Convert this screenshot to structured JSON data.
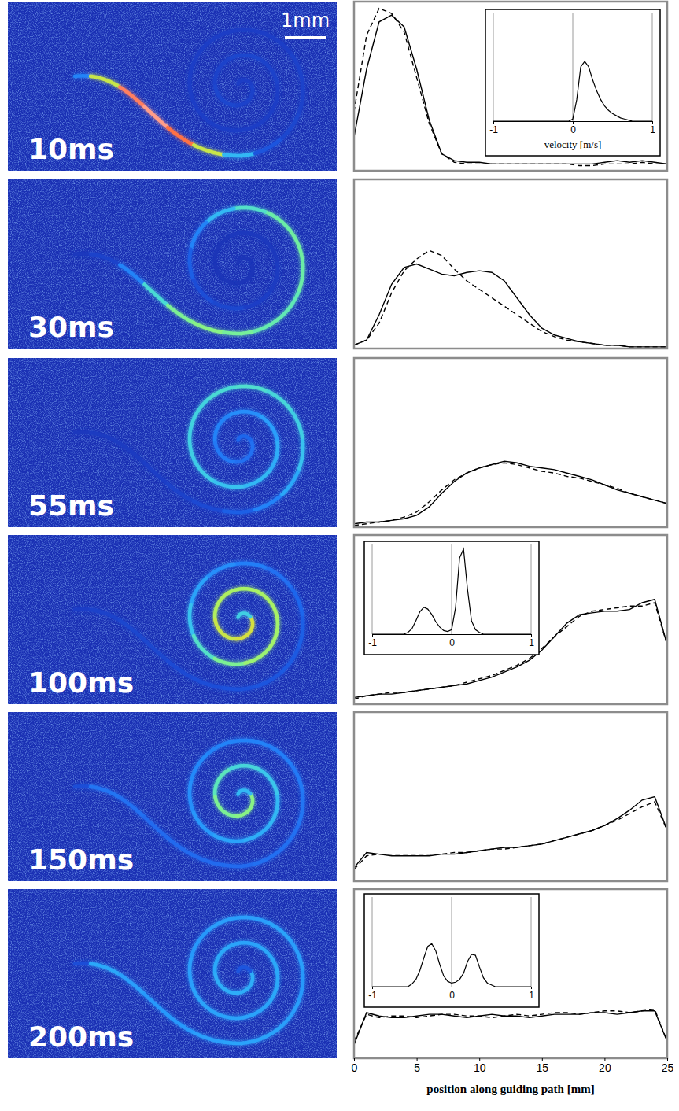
{
  "images": {
    "scale_bar": "1mm",
    "labels": [
      "10ms",
      "30ms",
      "55ms",
      "100ms",
      "150ms",
      "200ms"
    ]
  },
  "chart_data": [
    {
      "type": "line",
      "x": [
        0,
        1,
        2,
        3,
        4,
        5,
        6,
        7,
        8,
        9,
        10,
        11,
        12,
        13,
        14,
        15,
        16,
        17,
        18,
        19,
        20,
        21,
        22,
        23,
        24,
        25
      ],
      "xlim": [
        0,
        25
      ],
      "ylim": [
        0,
        1
      ],
      "tick_labels": false,
      "series": [
        {
          "line_style": "solid",
          "values": [
            0.2,
            0.6,
            0.88,
            0.92,
            0.85,
            0.6,
            0.3,
            0.1,
            0.06,
            0.05,
            0.05,
            0.04,
            0.04,
            0.04,
            0.04,
            0.04,
            0.04,
            0.04,
            0.04,
            0.04,
            0.05,
            0.06,
            0.05,
            0.06,
            0.05,
            0.04
          ]
        },
        {
          "line_style": "dashed",
          "values": [
            0.35,
            0.8,
            0.96,
            0.93,
            0.82,
            0.55,
            0.28,
            0.1,
            0.05,
            0.04,
            0.04,
            0.04,
            0.04,
            0.04,
            0.04,
            0.04,
            0.04,
            0.04,
            0.03,
            0.03,
            0.04,
            0.04,
            0.04,
            0.05,
            0.04,
            0.04
          ]
        }
      ]
    },
    {
      "type": "line",
      "x": [
        0,
        1,
        2,
        3,
        4,
        5,
        6,
        7,
        8,
        9,
        10,
        11,
        12,
        13,
        14,
        15,
        16,
        17,
        18,
        19,
        20,
        21,
        22,
        23,
        24,
        25
      ],
      "xlim": [
        0,
        25
      ],
      "ylim": [
        0,
        1
      ],
      "tick_labels": false,
      "series": [
        {
          "line_style": "solid",
          "values": [
            0.02,
            0.05,
            0.2,
            0.38,
            0.48,
            0.5,
            0.47,
            0.44,
            0.43,
            0.45,
            0.46,
            0.45,
            0.4,
            0.3,
            0.2,
            0.12,
            0.08,
            0.06,
            0.04,
            0.03,
            0.02,
            0.02,
            0.01,
            0.01,
            0.01,
            0.01
          ]
        },
        {
          "line_style": "dashed",
          "values": [
            0.02,
            0.05,
            0.15,
            0.33,
            0.46,
            0.53,
            0.58,
            0.55,
            0.47,
            0.4,
            0.35,
            0.3,
            0.25,
            0.2,
            0.15,
            0.1,
            0.07,
            0.05,
            0.04,
            0.03,
            0.02,
            0.02,
            0.01,
            0.01,
            0.01,
            0.01
          ]
        }
      ]
    },
    {
      "type": "line",
      "x": [
        0,
        1,
        2,
        3,
        4,
        5,
        6,
        7,
        8,
        9,
        10,
        11,
        12,
        13,
        14,
        15,
        16,
        17,
        18,
        19,
        20,
        21,
        22,
        23,
        24,
        25
      ],
      "xlim": [
        0,
        25
      ],
      "ylim": [
        0,
        1
      ],
      "tick_labels": false,
      "series": [
        {
          "line_style": "solid",
          "values": [
            0.02,
            0.03,
            0.03,
            0.04,
            0.05,
            0.07,
            0.12,
            0.2,
            0.27,
            0.32,
            0.35,
            0.37,
            0.39,
            0.38,
            0.36,
            0.35,
            0.34,
            0.32,
            0.3,
            0.28,
            0.25,
            0.22,
            0.2,
            0.18,
            0.16,
            0.14
          ]
        },
        {
          "line_style": "dashed",
          "values": [
            0.01,
            0.02,
            0.03,
            0.04,
            0.06,
            0.09,
            0.15,
            0.22,
            0.28,
            0.32,
            0.35,
            0.37,
            0.38,
            0.37,
            0.35,
            0.33,
            0.32,
            0.3,
            0.29,
            0.27,
            0.25,
            0.23,
            0.2,
            0.18,
            0.16,
            0.14
          ]
        }
      ]
    },
    {
      "type": "line",
      "x": [
        0,
        1,
        2,
        3,
        4,
        5,
        6,
        7,
        8,
        9,
        10,
        11,
        12,
        13,
        14,
        15,
        16,
        17,
        18,
        19,
        20,
        21,
        22,
        23,
        24,
        25
      ],
      "xlim": [
        0,
        25
      ],
      "ylim": [
        0,
        1
      ],
      "tick_labels": false,
      "series": [
        {
          "line_style": "solid",
          "values": [
            0.04,
            0.05,
            0.06,
            0.06,
            0.07,
            0.08,
            0.09,
            0.1,
            0.11,
            0.12,
            0.14,
            0.16,
            0.19,
            0.22,
            0.26,
            0.32,
            0.4,
            0.48,
            0.53,
            0.54,
            0.55,
            0.55,
            0.56,
            0.6,
            0.62,
            0.35
          ]
        },
        {
          "line_style": "dashed",
          "values": [
            0.03,
            0.05,
            0.06,
            0.07,
            0.07,
            0.08,
            0.09,
            0.1,
            0.11,
            0.13,
            0.15,
            0.17,
            0.2,
            0.23,
            0.27,
            0.33,
            0.4,
            0.46,
            0.52,
            0.55,
            0.56,
            0.57,
            0.58,
            0.58,
            0.6,
            0.35
          ]
        }
      ]
    },
    {
      "type": "line",
      "x": [
        0,
        1,
        2,
        3,
        4,
        5,
        6,
        7,
        8,
        9,
        10,
        11,
        12,
        13,
        14,
        15,
        16,
        17,
        18,
        19,
        20,
        21,
        22,
        23,
        24,
        25
      ],
      "xlim": [
        0,
        25
      ],
      "ylim": [
        0,
        1
      ],
      "tick_labels": false,
      "series": [
        {
          "line_style": "solid",
          "values": [
            0.08,
            0.17,
            0.16,
            0.15,
            0.15,
            0.15,
            0.15,
            0.16,
            0.16,
            0.17,
            0.18,
            0.19,
            0.2,
            0.2,
            0.21,
            0.22,
            0.24,
            0.26,
            0.28,
            0.3,
            0.33,
            0.37,
            0.42,
            0.48,
            0.5,
            0.3
          ]
        },
        {
          "line_style": "dashed",
          "values": [
            0.07,
            0.15,
            0.16,
            0.16,
            0.16,
            0.16,
            0.16,
            0.16,
            0.17,
            0.17,
            0.18,
            0.19,
            0.19,
            0.2,
            0.21,
            0.22,
            0.24,
            0.26,
            0.28,
            0.3,
            0.33,
            0.36,
            0.4,
            0.44,
            0.47,
            0.3
          ]
        }
      ]
    },
    {
      "type": "line",
      "x": [
        0,
        1,
        2,
        3,
        4,
        5,
        6,
        7,
        8,
        9,
        10,
        11,
        12,
        13,
        14,
        15,
        16,
        17,
        18,
        19,
        20,
        21,
        22,
        23,
        24,
        25
      ],
      "xlim": [
        0,
        25
      ],
      "ylim": [
        0,
        1
      ],
      "xticks": [
        0,
        5,
        10,
        15,
        20,
        25
      ],
      "tick_labels": "x",
      "x_label": "position along guiding path [mm]",
      "series": [
        {
          "line_style": "solid",
          "values": [
            0.08,
            0.27,
            0.25,
            0.24,
            0.24,
            0.25,
            0.26,
            0.26,
            0.25,
            0.24,
            0.25,
            0.26,
            0.25,
            0.25,
            0.24,
            0.25,
            0.26,
            0.26,
            0.26,
            0.27,
            0.27,
            0.26,
            0.27,
            0.28,
            0.28,
            0.1
          ]
        },
        {
          "line_style": "dashed",
          "values": [
            0.1,
            0.26,
            0.24,
            0.25,
            0.25,
            0.24,
            0.25,
            0.26,
            0.26,
            0.25,
            0.25,
            0.24,
            0.25,
            0.26,
            0.25,
            0.26,
            0.27,
            0.27,
            0.26,
            0.27,
            0.28,
            0.28,
            0.27,
            0.28,
            0.29,
            0.1
          ]
        }
      ]
    },
    {
      "type": "line",
      "x": [
        -1,
        -0.95,
        -0.9,
        -0.85,
        -0.8,
        -0.75,
        -0.7,
        -0.65,
        -0.6,
        -0.55,
        -0.5,
        -0.45,
        -0.4,
        -0.35,
        -0.3,
        -0.25,
        -0.2,
        -0.15,
        -0.1,
        -0.05,
        0,
        0.05,
        0.1,
        0.15,
        0.2,
        0.25,
        0.3,
        0.35,
        0.4,
        0.45,
        0.5,
        0.55,
        0.6,
        0.65,
        0.7,
        0.75,
        0.8,
        0.85,
        0.9,
        0.95,
        1
      ],
      "xlim": [
        -1,
        1
      ],
      "ylim": [
        0,
        1
      ],
      "xticks": [
        -1,
        0,
        1
      ],
      "tick_labels": "x",
      "grid": true,
      "x_label": "velocity [m/s]",
      "series": [
        {
          "line_style": "solid",
          "values": [
            0,
            0,
            0,
            0,
            0,
            0,
            0,
            0,
            0,
            0,
            0,
            0,
            0,
            0,
            0,
            0,
            0,
            0,
            0,
            0,
            0.02,
            0.2,
            0.5,
            0.55,
            0.5,
            0.38,
            0.28,
            0.2,
            0.14,
            0.1,
            0.07,
            0.05,
            0.03,
            0.02,
            0.01,
            0,
            0,
            0,
            0,
            0,
            0
          ]
        }
      ]
    },
    {
      "type": "line",
      "x": [
        -1,
        -0.95,
        -0.9,
        -0.85,
        -0.8,
        -0.75,
        -0.7,
        -0.65,
        -0.6,
        -0.55,
        -0.5,
        -0.45,
        -0.4,
        -0.35,
        -0.3,
        -0.25,
        -0.2,
        -0.15,
        -0.1,
        -0.05,
        0,
        0.05,
        0.1,
        0.15,
        0.2,
        0.25,
        0.3,
        0.35,
        0.4,
        0.45,
        0.5,
        0.55,
        0.6,
        0.65,
        0.7,
        0.75,
        0.8,
        0.85,
        0.9,
        0.95,
        1
      ],
      "xlim": [
        -1,
        1
      ],
      "ylim": [
        0,
        1
      ],
      "xticks": [
        -1,
        0,
        1
      ],
      "tick_labels": "x",
      "grid": true,
      "series": [
        {
          "line_style": "solid",
          "values": [
            0,
            0,
            0,
            0,
            0,
            0,
            0,
            0,
            0,
            0.02,
            0.06,
            0.15,
            0.25,
            0.3,
            0.28,
            0.22,
            0.14,
            0.08,
            0.04,
            0.03,
            0.05,
            0.3,
            0.85,
            0.95,
            0.5,
            0.15,
            0.05,
            0.02,
            0,
            0,
            0,
            0,
            0,
            0,
            0,
            0,
            0,
            0,
            0,
            0,
            0
          ]
        }
      ]
    },
    {
      "type": "line",
      "x": [
        -1,
        -0.95,
        -0.9,
        -0.85,
        -0.8,
        -0.75,
        -0.7,
        -0.65,
        -0.6,
        -0.55,
        -0.5,
        -0.45,
        -0.4,
        -0.35,
        -0.3,
        -0.25,
        -0.2,
        -0.15,
        -0.1,
        -0.05,
        0,
        0.05,
        0.1,
        0.15,
        0.2,
        0.25,
        0.3,
        0.35,
        0.4,
        0.45,
        0.5,
        0.55,
        0.6,
        0.65,
        0.7,
        0.75,
        0.8,
        0.85,
        0.9,
        0.95,
        1
      ],
      "xlim": [
        -1,
        1
      ],
      "ylim": [
        0,
        1
      ],
      "xticks": [
        -1,
        0,
        1
      ],
      "tick_labels": "x",
      "grid": true,
      "series": [
        {
          "line_style": "solid",
          "values": [
            0,
            0,
            0,
            0,
            0,
            0,
            0,
            0,
            0,
            0,
            0.03,
            0.08,
            0.18,
            0.32,
            0.45,
            0.48,
            0.4,
            0.25,
            0.12,
            0.06,
            0.04,
            0.05,
            0.08,
            0.15,
            0.28,
            0.36,
            0.35,
            0.22,
            0.1,
            0.04,
            0.02,
            0,
            0,
            0,
            0,
            0,
            0,
            0,
            0,
            0,
            0
          ]
        }
      ]
    }
  ]
}
